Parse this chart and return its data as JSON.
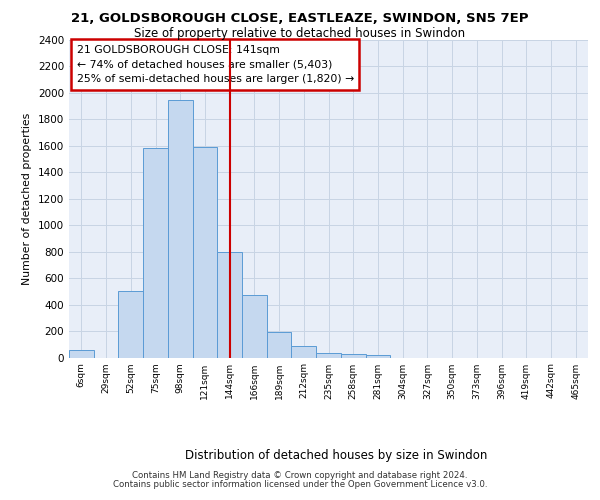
{
  "title_line1": "21, GOLDSBOROUGH CLOSE, EASTLEAZE, SWINDON, SN5 7EP",
  "title_line2": "Size of property relative to detached houses in Swindon",
  "xlabel": "Distribution of detached houses by size in Swindon",
  "ylabel": "Number of detached properties",
  "footer_line1": "Contains HM Land Registry data © Crown copyright and database right 2024.",
  "footer_line2": "Contains public sector information licensed under the Open Government Licence v3.0.",
  "bar_labels": [
    "6sqm",
    "29sqm",
    "52sqm",
    "75sqm",
    "98sqm",
    "121sqm",
    "144sqm",
    "166sqm",
    "189sqm",
    "212sqm",
    "235sqm",
    "258sqm",
    "281sqm",
    "304sqm",
    "327sqm",
    "350sqm",
    "373sqm",
    "396sqm",
    "419sqm",
    "442sqm",
    "465sqm"
  ],
  "bar_values": [
    55,
    0,
    500,
    1580,
    1950,
    1590,
    800,
    475,
    195,
    90,
    35,
    30,
    20,
    0,
    0,
    0,
    0,
    0,
    0,
    0,
    0
  ],
  "bar_color": "#c5d8ef",
  "bar_edge_color": "#5b9bd5",
  "annotation_text_line1": "21 GOLDSBOROUGH CLOSE: 141sqm",
  "annotation_text_line2": "← 74% of detached houses are smaller (5,403)",
  "annotation_text_line3": "25% of semi-detached houses are larger (1,820) →",
  "annotation_box_color": "#ffffff",
  "annotation_border_color": "#cc0000",
  "vline_x_index": 6,
  "vline_color": "#cc0000",
  "ylim": [
    0,
    2400
  ],
  "yticks": [
    0,
    200,
    400,
    600,
    800,
    1000,
    1200,
    1400,
    1600,
    1800,
    2000,
    2200,
    2400
  ],
  "grid_color": "#c8d4e4",
  "background_color": "#e8eef8"
}
